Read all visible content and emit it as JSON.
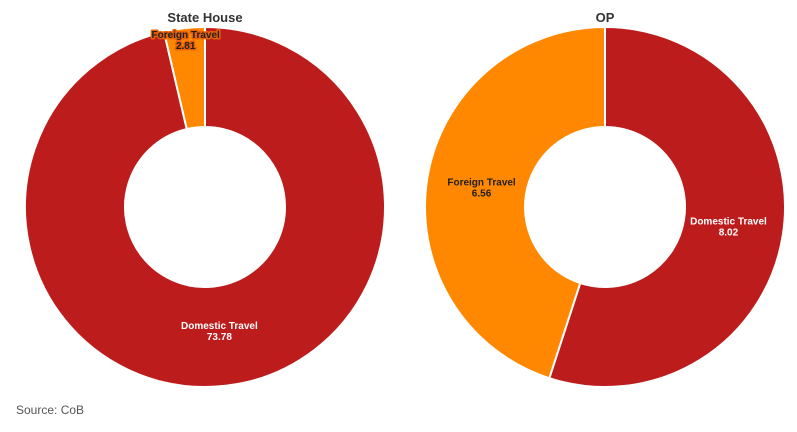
{
  "colors": {
    "domestic": "#bd1c1c",
    "foreign": "#ff8800",
    "label_dark": "#1f1f1f",
    "label_light": "#ffffff",
    "label_outline": "#e8600a"
  },
  "source": "Source: CoB",
  "chart_data": [
    {
      "type": "pie",
      "variant": "donut",
      "title": "State House",
      "slices": [
        {
          "label": "Foreign Travel",
          "value": 2.81,
          "value_label": "2.81",
          "color_key": "foreign"
        },
        {
          "label": "Domestic Travel",
          "value": 73.78,
          "value_label": "73.78",
          "color_key": "domestic"
        }
      ]
    },
    {
      "type": "pie",
      "variant": "donut",
      "title": "OP",
      "slices": [
        {
          "label": "Domestic Travel",
          "value": 8.02,
          "value_label": "8.02",
          "color_key": "domestic"
        },
        {
          "label": "Foreign Travel",
          "value": 6.56,
          "value_label": "6.56",
          "color_key": "foreign"
        }
      ]
    }
  ]
}
